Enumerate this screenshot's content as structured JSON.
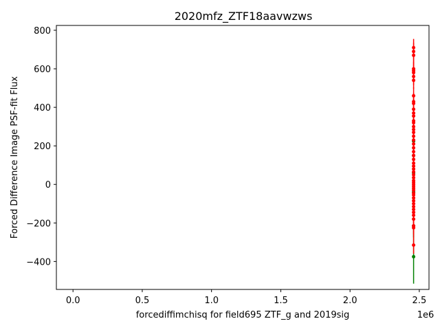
{
  "chart_data": {
    "type": "scatter",
    "title": "2020mfz_ZTF18aavwzws",
    "xlabel": "forcediffimchisq for field695 ZTF_g and 2019sig",
    "ylabel": "Forced Difference Image PSF-fit Flux",
    "x_offset_label": "1e6",
    "xlim": [
      -120000,
      2570000
    ],
    "ylim": [
      -545,
      825
    ],
    "xticks": [
      0.0,
      0.5,
      1.0,
      1.5,
      2.0,
      2.5
    ],
    "xtick_labels": [
      "0.0",
      "0.5",
      "1.0",
      "1.5",
      "2.0",
      "2.5"
    ],
    "yticks": [
      -400,
      -200,
      0,
      200,
      400,
      600,
      800
    ],
    "ytick_labels": [
      "−400",
      "−200",
      "0",
      "200",
      "400",
      "600",
      "800"
    ],
    "x_multiplier": 1000000,
    "grid": false,
    "series": [
      {
        "color": "#008000",
        "points": [
          {
            "x": 2458800,
            "y": -375,
            "err": 140
          },
          {
            "x": 2458800,
            "y": -215,
            "err": 60
          },
          {
            "x": 2458800,
            "y": 225,
            "err": 20
          },
          {
            "x": 2458800,
            "y": 150,
            "err": 40
          },
          {
            "x": 2458800,
            "y": 60,
            "err": 40
          },
          {
            "x": 2458800,
            "y": -40,
            "err": 40
          }
        ]
      },
      {
        "color": "#ff0000",
        "points": [
          {
            "x": 2458850,
            "y": 710,
            "err": 45
          },
          {
            "x": 2458850,
            "y": 690,
            "err": 45
          },
          {
            "x": 2458850,
            "y": 670,
            "err": 45
          },
          {
            "x": 2458850,
            "y": 600,
            "err": 45
          },
          {
            "x": 2458850,
            "y": 590,
            "err": 45
          },
          {
            "x": 2458850,
            "y": 580,
            "err": 45
          },
          {
            "x": 2458850,
            "y": 560,
            "err": 45
          },
          {
            "x": 2458850,
            "y": 540,
            "err": 45
          },
          {
            "x": 2458850,
            "y": 460,
            "err": 45
          },
          {
            "x": 2458850,
            "y": 430,
            "err": 45
          },
          {
            "x": 2458850,
            "y": 420,
            "err": 45
          },
          {
            "x": 2458850,
            "y": 390,
            "err": 45
          },
          {
            "x": 2458850,
            "y": 370,
            "err": 45
          },
          {
            "x": 2458850,
            "y": 355,
            "err": 45
          },
          {
            "x": 2458850,
            "y": 330,
            "err": 45
          },
          {
            "x": 2458850,
            "y": 320,
            "err": 45
          },
          {
            "x": 2458850,
            "y": 300,
            "err": 45
          },
          {
            "x": 2458850,
            "y": 285,
            "err": 45
          },
          {
            "x": 2458850,
            "y": 270,
            "err": 45
          },
          {
            "x": 2458850,
            "y": 250,
            "err": 45
          },
          {
            "x": 2458850,
            "y": 230,
            "err": 45
          },
          {
            "x": 2458850,
            "y": 210,
            "err": 45
          },
          {
            "x": 2458850,
            "y": 190,
            "err": 45
          },
          {
            "x": 2458850,
            "y": 170,
            "err": 45
          },
          {
            "x": 2458850,
            "y": 150,
            "err": 45
          },
          {
            "x": 2458850,
            "y": 130,
            "err": 45
          },
          {
            "x": 2458850,
            "y": 110,
            "err": 45
          },
          {
            "x": 2458850,
            "y": 95,
            "err": 45
          },
          {
            "x": 2458850,
            "y": 80,
            "err": 45
          },
          {
            "x": 2458850,
            "y": 65,
            "err": 45
          },
          {
            "x": 2458850,
            "y": 50,
            "err": 45
          },
          {
            "x": 2458850,
            "y": 35,
            "err": 45
          },
          {
            "x": 2458850,
            "y": 20,
            "err": 45
          },
          {
            "x": 2458850,
            "y": 10,
            "err": 45
          },
          {
            "x": 2458850,
            "y": 0,
            "err": 45
          },
          {
            "x": 2458850,
            "y": -10,
            "err": 45
          },
          {
            "x": 2458850,
            "y": -20,
            "err": 45
          },
          {
            "x": 2458850,
            "y": -30,
            "err": 45
          },
          {
            "x": 2458850,
            "y": -45,
            "err": 45
          },
          {
            "x": 2458850,
            "y": -55,
            "err": 45
          },
          {
            "x": 2458850,
            "y": -70,
            "err": 45
          },
          {
            "x": 2458850,
            "y": -85,
            "err": 45
          },
          {
            "x": 2458850,
            "y": -100,
            "err": 45
          },
          {
            "x": 2458850,
            "y": -115,
            "err": 45
          },
          {
            "x": 2458850,
            "y": -130,
            "err": 45
          },
          {
            "x": 2458850,
            "y": -145,
            "err": 45
          },
          {
            "x": 2458850,
            "y": -160,
            "err": 45
          },
          {
            "x": 2458850,
            "y": -180,
            "err": 45
          },
          {
            "x": 2458850,
            "y": -215,
            "err": 45
          },
          {
            "x": 2458850,
            "y": -225,
            "err": 45
          },
          {
            "x": 2458850,
            "y": -315,
            "err": 45
          }
        ]
      }
    ]
  }
}
